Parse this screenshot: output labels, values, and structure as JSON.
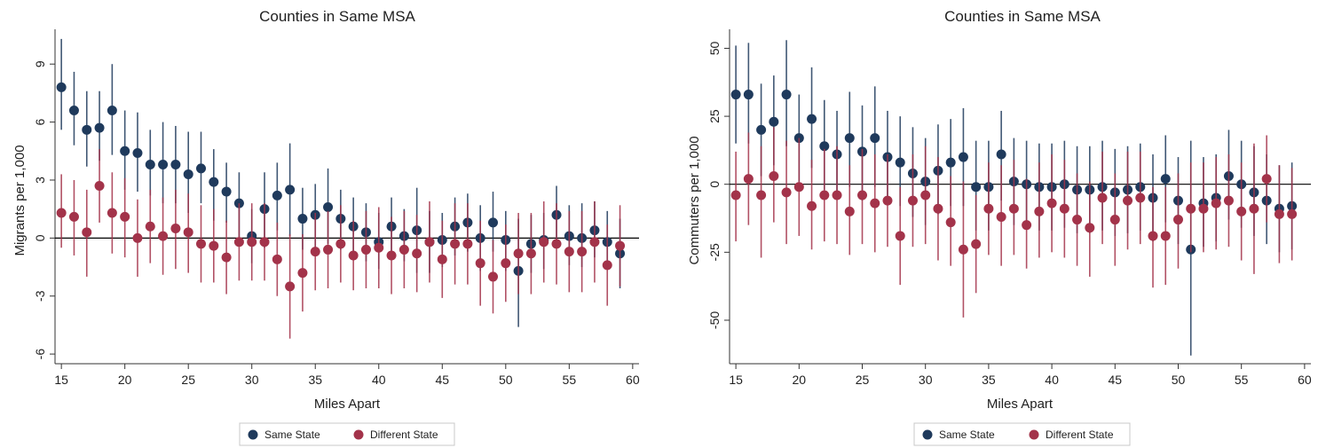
{
  "chart_data": [
    {
      "type": "scatter",
      "title": "Counties in Same MSA",
      "xlabel": "Miles Apart",
      "ylabel": "Migrants per 1,000",
      "xlim": [
        14.5,
        60.5
      ],
      "ylim": [
        -6.5,
        10.8
      ],
      "xticks": [
        "15",
        "20",
        "25",
        "30",
        "35",
        "40",
        "45",
        "50",
        "55",
        "60"
      ],
      "yticks": [
        "9",
        "6",
        "3",
        "0",
        "-3",
        "-6"
      ],
      "ytick_values": [
        9,
        6,
        3,
        0,
        -3,
        -6
      ],
      "x": [
        15,
        16,
        17,
        18,
        19,
        20,
        21,
        22,
        23,
        24,
        25,
        26,
        27,
        28,
        29,
        30,
        31,
        32,
        33,
        34,
        35,
        36,
        37,
        38,
        39,
        40,
        41,
        42,
        43,
        44,
        45,
        46,
        47,
        48,
        49,
        50,
        51,
        52,
        53,
        54,
        55,
        56,
        57,
        58,
        59
      ],
      "zero_line": true,
      "legend_position": "bottom",
      "series": [
        {
          "name": "Same State",
          "color": "#1f3a5c",
          "values": [
            7.8,
            6.6,
            5.6,
            5.7,
            6.6,
            4.5,
            4.4,
            3.8,
            3.8,
            3.8,
            3.3,
            3.6,
            2.9,
            2.4,
            1.8,
            0.1,
            1.5,
            2.2,
            2.5,
            1.0,
            1.2,
            1.6,
            1.0,
            0.6,
            0.3,
            -0.2,
            0.6,
            0.1,
            0.4,
            -0.2,
            -0.1,
            0.6,
            0.8,
            0.0,
            0.8,
            -0.1,
            -1.7,
            -0.3,
            -0.1,
            1.2,
            0.1,
            0.0,
            0.4,
            -0.2,
            -0.8
          ],
          "ci_low": [
            5.6,
            4.8,
            3.7,
            4.0,
            4.3,
            2.5,
            2.4,
            2.2,
            1.8,
            1.8,
            1.3,
            1.8,
            0.9,
            0.8,
            0.0,
            -1.3,
            -0.5,
            0.4,
            0.1,
            -0.6,
            -0.5,
            -0.3,
            -0.6,
            -0.9,
            -1.2,
            -1.6,
            -0.9,
            -1.2,
            -1.8,
            -1.8,
            -1.5,
            -0.9,
            -0.7,
            -1.7,
            -0.7,
            -1.7,
            -4.6,
            -1.8,
            -1.6,
            -0.3,
            -1.4,
            -1.5,
            -1.0,
            -1.6,
            -2.6
          ],
          "ci_high": [
            10.3,
            8.6,
            7.6,
            7.6,
            9.0,
            6.6,
            6.5,
            5.6,
            6.0,
            5.8,
            5.5,
            5.5,
            4.6,
            3.9,
            3.4,
            1.5,
            3.4,
            3.9,
            4.9,
            2.6,
            2.8,
            3.6,
            2.5,
            2.1,
            1.8,
            1.3,
            2.1,
            1.5,
            2.6,
            1.4,
            1.3,
            2.1,
            2.3,
            1.7,
            2.4,
            1.4,
            1.0,
            1.2,
            1.3,
            2.7,
            1.7,
            1.8,
            1.9,
            1.4,
            1.0
          ]
        },
        {
          "name": "Different State",
          "color": "#a3334a",
          "values": [
            1.3,
            1.1,
            0.3,
            2.7,
            1.3,
            1.1,
            0.0,
            0.6,
            0.1,
            0.5,
            0.3,
            -0.3,
            -0.4,
            -1.0,
            -0.2,
            -0.2,
            -0.2,
            -1.1,
            -2.5,
            -1.8,
            -0.7,
            -0.6,
            -0.3,
            -0.9,
            -0.6,
            -0.5,
            -0.9,
            -0.6,
            -0.8,
            -0.2,
            -1.1,
            -0.3,
            -0.3,
            -1.3,
            -2.0,
            -1.3,
            -0.8,
            -0.8,
            -0.2,
            -0.3,
            -0.7,
            -0.7,
            -0.2,
            -1.4,
            -0.4
          ],
          "ci_low": [
            -0.5,
            -0.9,
            -2.0,
            0.8,
            -0.8,
            -1.0,
            -2.0,
            -1.3,
            -1.9,
            -1.6,
            -1.8,
            -2.3,
            -2.3,
            -2.9,
            -2.2,
            -2.2,
            -2.2,
            -3.0,
            -5.2,
            -3.8,
            -2.7,
            -2.6,
            -2.3,
            -2.7,
            -2.6,
            -2.6,
            -2.9,
            -2.6,
            -2.8,
            -2.3,
            -3.1,
            -2.4,
            -2.4,
            -3.5,
            -3.9,
            -3.3,
            -2.9,
            -2.9,
            -2.3,
            -2.4,
            -2.8,
            -2.8,
            -2.3,
            -3.5,
            -2.5
          ],
          "ci_high": [
            3.3,
            3.0,
            2.5,
            4.6,
            3.4,
            3.1,
            2.0,
            2.5,
            2.1,
            2.5,
            2.3,
            1.7,
            1.5,
            0.9,
            1.8,
            1.8,
            1.8,
            0.8,
            0.2,
            0.2,
            1.3,
            1.4,
            1.7,
            0.9,
            1.4,
            1.6,
            1.1,
            1.4,
            1.2,
            1.9,
            0.9,
            1.8,
            1.8,
            0.9,
            -0.1,
            0.7,
            1.3,
            1.3,
            1.9,
            1.8,
            1.4,
            1.4,
            1.9,
            0.7,
            1.7
          ]
        }
      ]
    },
    {
      "type": "scatter",
      "title": "Counties in Same MSA",
      "xlabel": "Miles Apart",
      "ylabel": "Commuters per 1,000",
      "xlim": [
        14.5,
        60.5
      ],
      "ylim": [
        -66,
        57
      ],
      "xticks": [
        "15",
        "20",
        "25",
        "30",
        "35",
        "40",
        "45",
        "50",
        "55",
        "60"
      ],
      "yticks": [
        "50",
        "25",
        "0",
        "-25",
        "-50"
      ],
      "ytick_values": [
        50,
        25,
        0,
        -25,
        -50
      ],
      "x": [
        15,
        16,
        17,
        18,
        19,
        20,
        21,
        22,
        23,
        24,
        25,
        26,
        27,
        28,
        29,
        30,
        31,
        32,
        33,
        34,
        35,
        36,
        37,
        38,
        39,
        40,
        41,
        42,
        43,
        44,
        45,
        46,
        47,
        48,
        49,
        50,
        51,
        52,
        53,
        54,
        55,
        56,
        57,
        58,
        59
      ],
      "zero_line": true,
      "legend_position": "bottom",
      "series": [
        {
          "name": "Same State",
          "color": "#1f3a5c",
          "values": [
            33,
            33,
            20,
            23,
            33,
            17,
            24,
            14,
            11,
            17,
            12,
            17,
            10,
            8,
            4,
            1,
            5,
            8,
            10,
            -1,
            -1,
            11,
            1,
            0,
            -1,
            -1,
            0,
            -2,
            -2,
            -1,
            -3,
            -2,
            -1,
            -5,
            2,
            -6,
            -24,
            -7,
            -5,
            3,
            0,
            -3,
            -6,
            -9,
            -8
          ],
          "ci_low": [
            15,
            15,
            3,
            7,
            14,
            1,
            6,
            -2,
            -5,
            -1,
            -6,
            -1,
            -6,
            -8,
            -12,
            -15,
            -11,
            -8,
            -8,
            -17,
            -17,
            -6,
            -15,
            -16,
            -17,
            -17,
            -16,
            -18,
            -18,
            -17,
            -19,
            -18,
            -17,
            -21,
            -14,
            -22,
            -63,
            -23,
            -21,
            -13,
            -16,
            -19,
            -22,
            -25,
            -24
          ],
          "ci_high": [
            51,
            52,
            37,
            40,
            53,
            33,
            43,
            31,
            27,
            34,
            29,
            36,
            27,
            25,
            21,
            17,
            22,
            24,
            28,
            16,
            16,
            27,
            17,
            16,
            15,
            15,
            16,
            14,
            14,
            16,
            13,
            14,
            15,
            11,
            18,
            10,
            16,
            10,
            11,
            20,
            16,
            14,
            11,
            7,
            8
          ]
        },
        {
          "name": "Different State",
          "color": "#a3334a",
          "values": [
            -4,
            2,
            -4,
            3,
            -3,
            -1,
            -8,
            -4,
            -4,
            -10,
            -4,
            -7,
            -6,
            -19,
            -6,
            -4,
            -9,
            -14,
            -24,
            -22,
            -9,
            -12,
            -9,
            -15,
            -10,
            -7,
            -9,
            -13,
            -16,
            -5,
            -13,
            -6,
            -5,
            -19,
            -19,
            -13,
            -9,
            -9,
            -7,
            -6,
            -10,
            -9,
            2,
            -11,
            -11
          ],
          "ci_low": [
            -21,
            -15,
            -27,
            -14,
            -22,
            -19,
            -24,
            -21,
            -22,
            -26,
            -22,
            -25,
            -23,
            -37,
            -23,
            -22,
            -28,
            -30,
            -49,
            -40,
            -26,
            -30,
            -26,
            -31,
            -27,
            -25,
            -27,
            -30,
            -34,
            -22,
            -30,
            -24,
            -22,
            -38,
            -37,
            -31,
            -25,
            -25,
            -24,
            -23,
            -28,
            -33,
            -14,
            -29,
            -28
          ],
          "ci_high": [
            12,
            19,
            14,
            21,
            16,
            17,
            9,
            13,
            14,
            7,
            13,
            11,
            11,
            -1,
            11,
            14,
            10,
            3,
            1,
            -4,
            8,
            7,
            9,
            2,
            8,
            11,
            9,
            4,
            1,
            12,
            4,
            12,
            12,
            -1,
            -1,
            4,
            8,
            8,
            10,
            11,
            8,
            15,
            18,
            7,
            6
          ]
        }
      ]
    }
  ]
}
